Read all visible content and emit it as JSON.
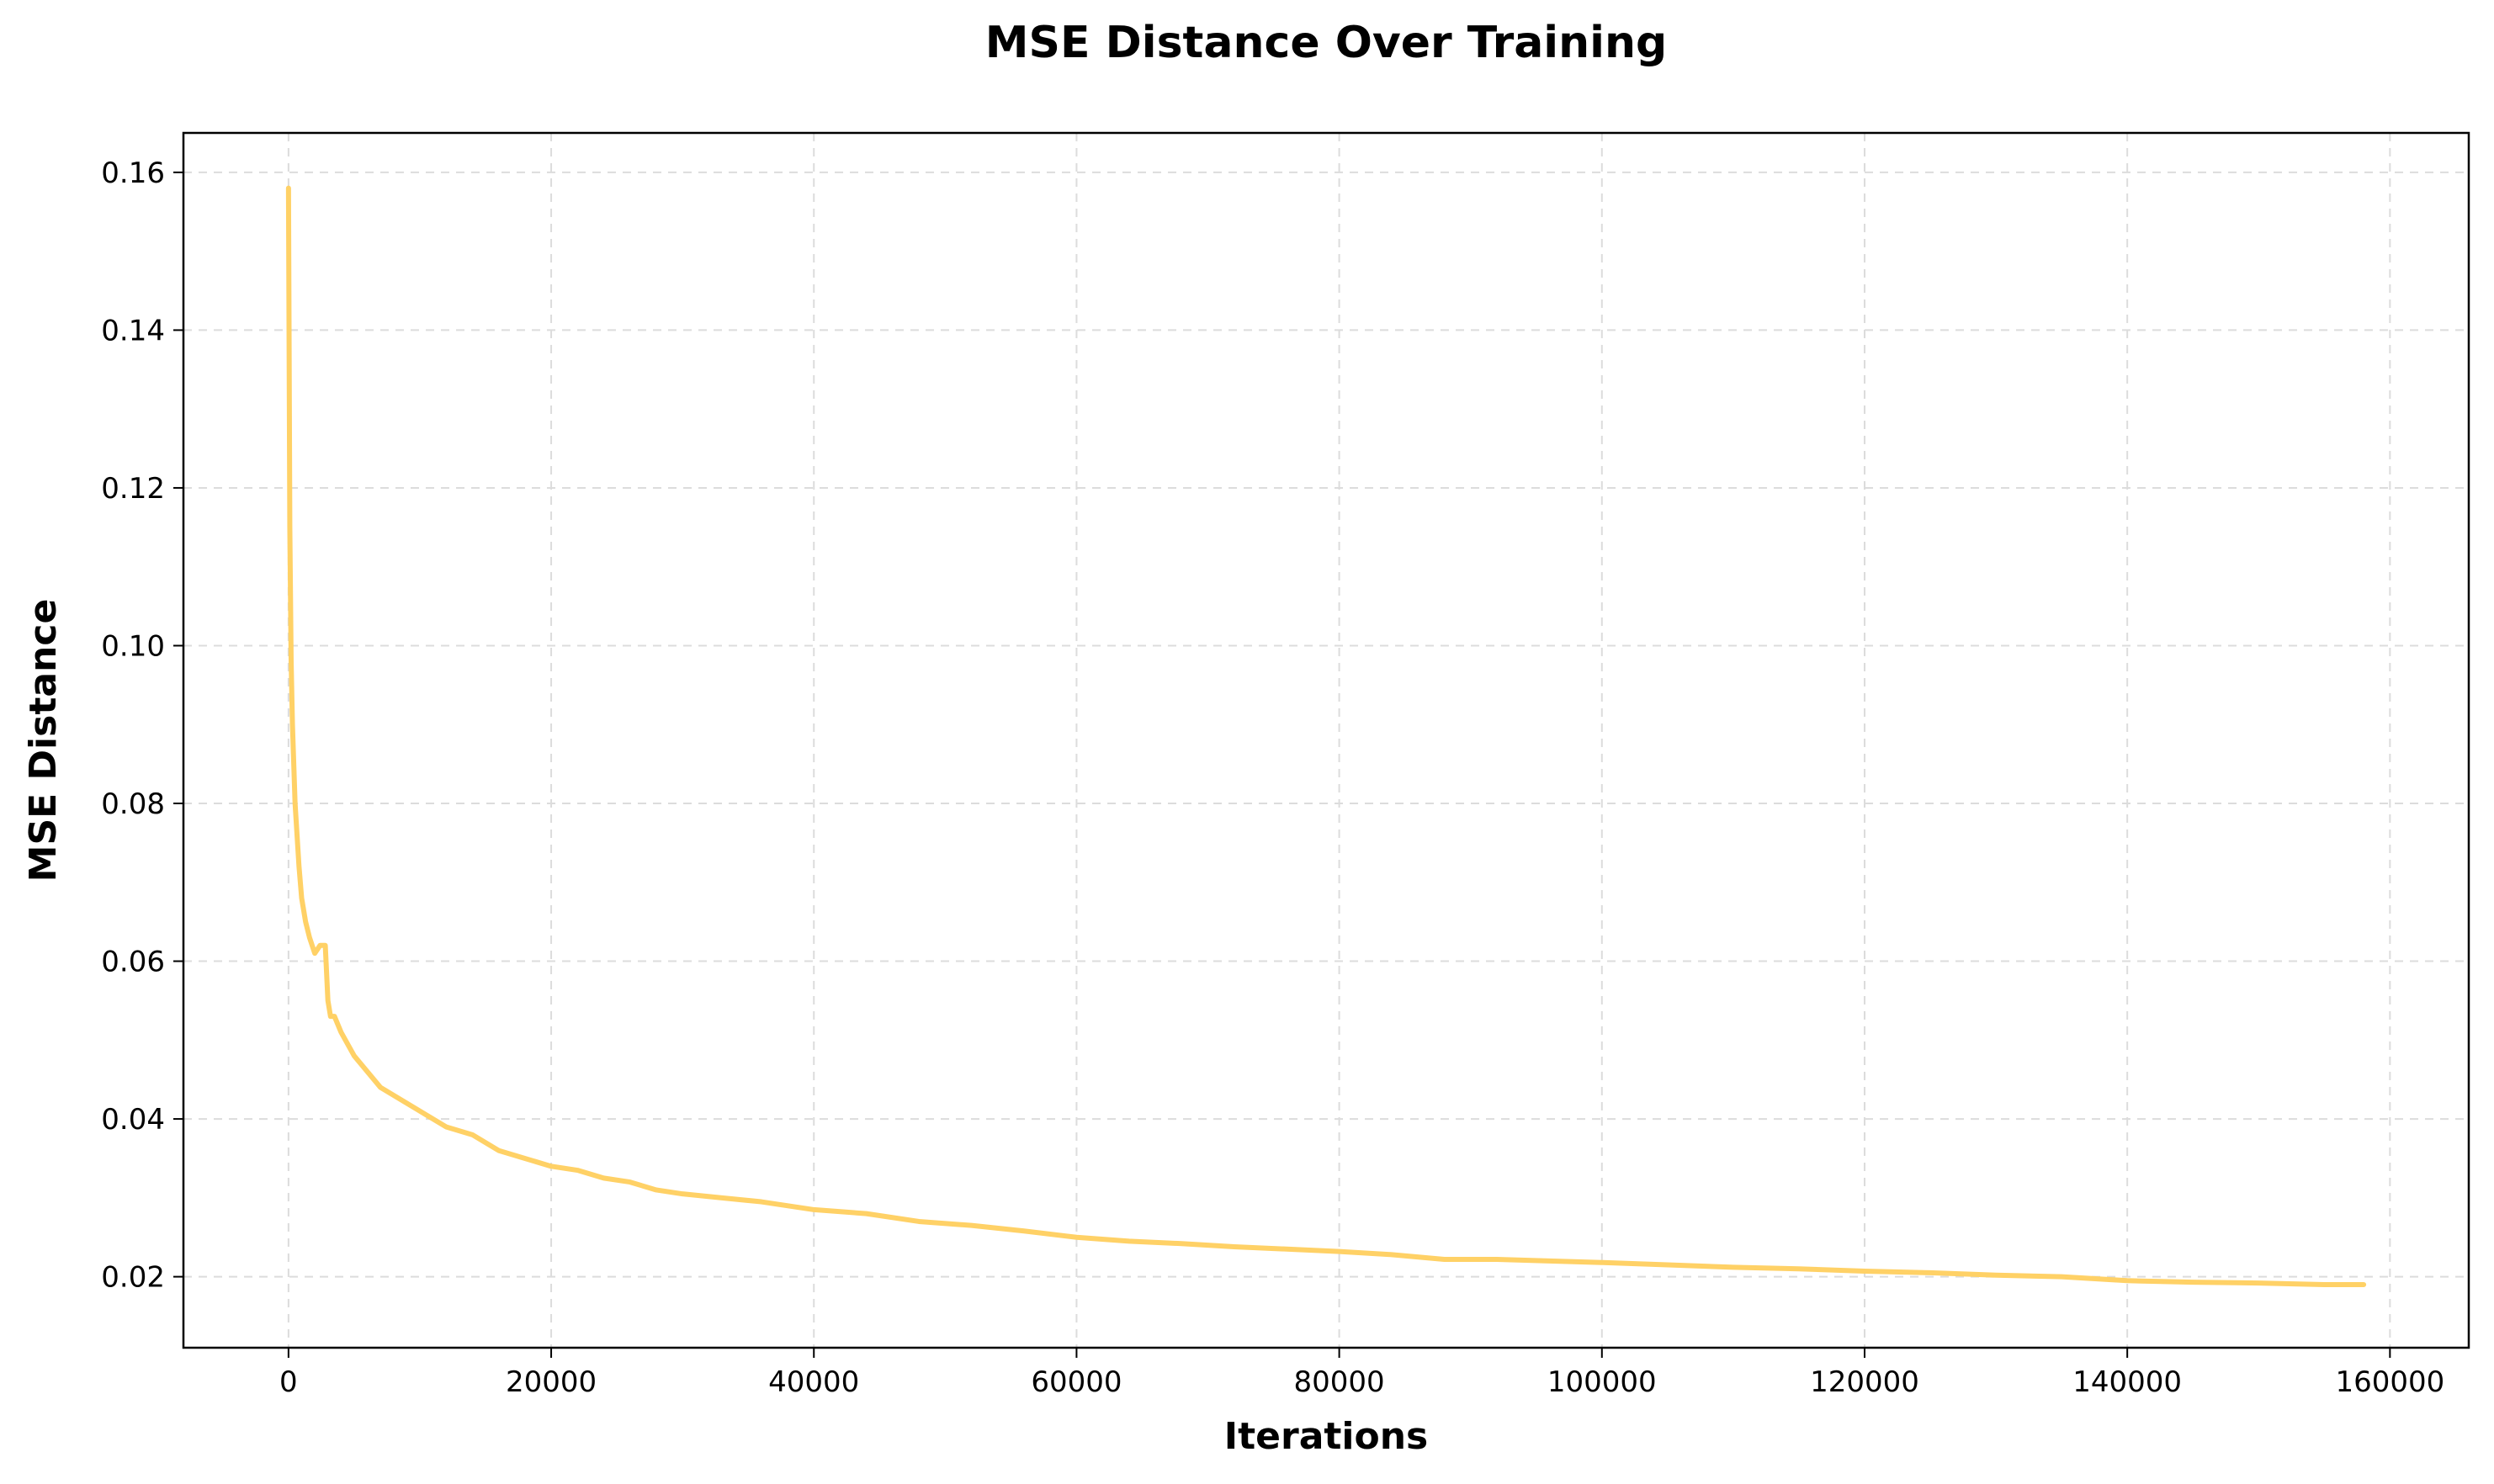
{
  "chart_data": {
    "type": "line",
    "title": "MSE Distance Over Training",
    "xlabel": "Iterations",
    "ylabel": "MSE Distance",
    "xlim": [
      -8000,
      166000
    ],
    "ylim": [
      0.011,
      0.165
    ],
    "xticks": [
      0,
      20000,
      40000,
      60000,
      80000,
      100000,
      120000,
      140000,
      160000
    ],
    "xtick_labels": [
      "0",
      "20000",
      "40000",
      "60000",
      "80000",
      "100000",
      "120000",
      "140000",
      "160000"
    ],
    "yticks": [
      0.02,
      0.04,
      0.06,
      0.08,
      0.1,
      0.12,
      0.14,
      0.16
    ],
    "ytick_labels": [
      "0.02",
      "0.04",
      "0.06",
      "0.08",
      "0.10",
      "0.12",
      "0.14",
      "0.16"
    ],
    "grid": true,
    "series": [
      {
        "color": "#ffd166",
        "x": [
          0,
          100,
          200,
          300,
          500,
          800,
          1000,
          1300,
          1600,
          2000,
          2400,
          2800,
          3000,
          3200,
          3500,
          4000,
          5000,
          6000,
          7000,
          8000,
          9000,
          10000,
          12000,
          14000,
          16000,
          18000,
          20000,
          22000,
          24000,
          26000,
          28000,
          30000,
          33000,
          36000,
          40000,
          44000,
          48000,
          52000,
          56000,
          60000,
          64000,
          68000,
          72000,
          76000,
          80000,
          84000,
          88000,
          92000,
          96000,
          100000,
          105000,
          110000,
          115000,
          120000,
          125000,
          130000,
          135000,
          140000,
          145000,
          150000,
          155000,
          158000
        ],
        "y": [
          0.158,
          0.115,
          0.098,
          0.09,
          0.08,
          0.072,
          0.068,
          0.065,
          0.063,
          0.061,
          0.062,
          0.062,
          0.055,
          0.053,
          0.053,
          0.051,
          0.048,
          0.046,
          0.044,
          0.043,
          0.042,
          0.041,
          0.039,
          0.038,
          0.036,
          0.035,
          0.034,
          0.0335,
          0.0325,
          0.032,
          0.031,
          0.0305,
          0.03,
          0.0295,
          0.0285,
          0.028,
          0.027,
          0.0265,
          0.0258,
          0.025,
          0.0245,
          0.0242,
          0.0238,
          0.0235,
          0.0232,
          0.0228,
          0.0222,
          0.0222,
          0.022,
          0.0218,
          0.0215,
          0.0212,
          0.021,
          0.0207,
          0.0205,
          0.0202,
          0.02,
          0.0195,
          0.0193,
          0.0192,
          0.019,
          0.019
        ]
      }
    ]
  }
}
